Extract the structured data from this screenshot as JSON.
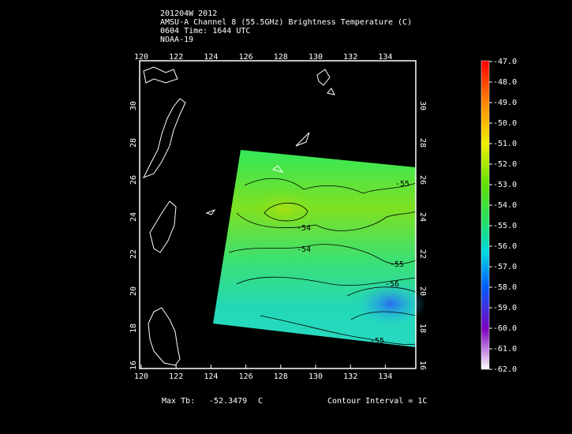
{
  "header": {
    "lines": [
      "201204W 2012",
      "AMSU-A Channel 8 (55.5GHz) Brightness Temperature (C)",
      "0604 Time: 1644 UTC",
      "NOAA-19"
    ]
  },
  "map": {
    "lon_labels": [
      "120",
      "122",
      "124",
      "126",
      "128",
      "130",
      "132",
      "134"
    ],
    "lat_labels": [
      "16",
      "18",
      "20",
      "22",
      "24",
      "26",
      "28",
      "30"
    ],
    "contour_labels": [
      "-55",
      "-54",
      "-54",
      "-55",
      "-56",
      "-55"
    ]
  },
  "colorbar": {
    "labels": [
      "-47.0",
      "-48.0",
      "-49.0",
      "-50.0",
      "-51.0",
      "-52.0",
      "-53.0",
      "-54.0",
      "-55.0",
      "-56.0",
      "-57.0",
      "-58.0",
      "-59.0",
      "-60.0",
      "-61.0",
      "-62.0"
    ]
  },
  "footer": {
    "max_label": "Max Tb:",
    "max_value": "-52.3479",
    "unit": "C",
    "contour_interval": "Contour Interval = 1C"
  }
}
